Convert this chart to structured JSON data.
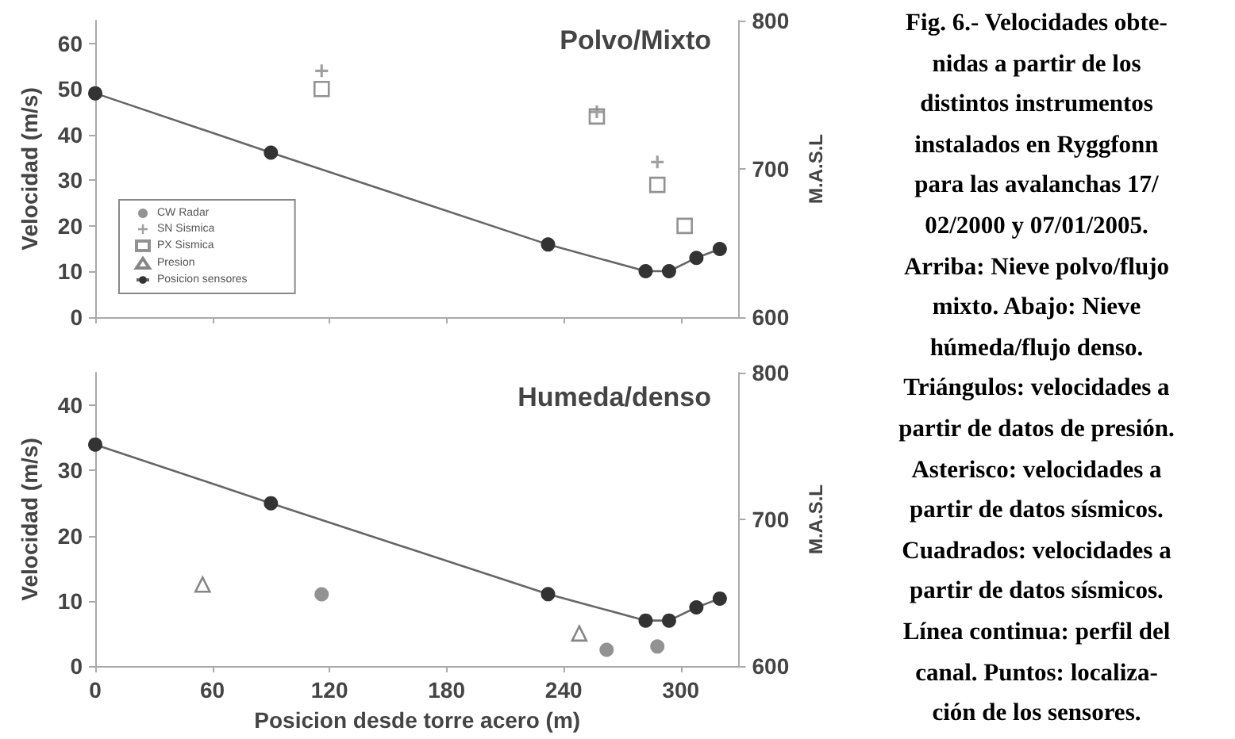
{
  "chart_data": [
    {
      "type": "scatter",
      "title": "Polvo/Mixto",
      "ylabel": "Velocidad (m/s)",
      "y2label": "M.A.S.L",
      "xlim": [
        0,
        330
      ],
      "xticks": [
        0,
        60,
        120,
        180,
        240,
        300
      ],
      "ylim": [
        0,
        65
      ],
      "yticks": [
        0,
        10,
        20,
        30,
        40,
        50,
        60
      ],
      "y2lim": [
        600,
        800
      ],
      "y2ticks": [
        600,
        700,
        800
      ],
      "tick_labels": "y",
      "grid": false,
      "legend": "bottom left",
      "annotations": [
        "Fig. 6.- Velocidades obte-\nnidas a partir de los\ndistintos instrumentos\ninstalados en Ryggfonn\npara las avalanchas 17/\n02/2000 y 07/01/2005.\nArriba: Nieve polvo/flujo\nmixto. Abajo: Nieve\nhúmeda/flujo denso.\nTriángulos: velocidades a\npartir de datos de presión.\nAsterisco: velocidades a\npartir de datos sísmicos.\nCuadrados: velocidades a\npartir de datos sísmicos.\nLínea continua: perfil del\ncanal. Puntos: localiza-\nción de los sensores."
      ],
      "series": [
        {
          "name": "CW Radar",
          "marker": "circle",
          "color": "#777777"
        },
        {
          "name": "SN Sismica",
          "marker": "cross",
          "color": "#888888",
          "x": [
            116,
            257,
            288
          ],
          "values": [
            54,
            45,
            34
          ]
        },
        {
          "name": "PX Sismica",
          "marker": "square",
          "color": "#777777",
          "x": [
            116,
            257,
            288,
            302
          ],
          "values": [
            50,
            44,
            29,
            20
          ]
        },
        {
          "name": "Presion",
          "marker": "triangle",
          "color": "#666666"
        },
        {
          "name": "Posicion sensores",
          "type": "line",
          "marker": "circle",
          "axis": "y2",
          "color": "#333333",
          "x": [
            0,
            90,
            232,
            282,
            294,
            308,
            320
          ],
          "values": [
            751,
            711,
            649,
            631,
            631,
            640,
            646
          ]
        }
      ]
    },
    {
      "type": "scatter",
      "title": "Humeda/denso",
      "xlabel": "Posicion desde torre acero (m)",
      "ylabel": "Velocidad (m/s)",
      "y2label": "M.A.S.L",
      "xlim": [
        0,
        330
      ],
      "xticks": [
        0,
        60,
        120,
        180,
        240,
        300
      ],
      "ylim": [
        0,
        45
      ],
      "yticks": [
        0,
        10,
        20,
        30,
        40
      ],
      "y2lim": [
        600,
        800
      ],
      "y2ticks": [
        600,
        700,
        800
      ],
      "grid": false,
      "legend": false,
      "series": [
        {
          "marker": "circle",
          "color": "#777777",
          "x": [
            116,
            262,
            288
          ],
          "values": [
            11,
            2.5,
            3
          ]
        },
        {
          "marker": "triangle",
          "color": "#666666",
          "x": [
            55,
            248
          ],
          "values": [
            12.5,
            5
          ]
        },
        {
          "type": "line",
          "marker": "circle",
          "axis": "y2",
          "color": "#333333",
          "x": [
            0,
            90,
            232,
            282,
            294,
            308,
            320
          ],
          "values": [
            751,
            711,
            649,
            631,
            631,
            640,
            646
          ]
        }
      ]
    }
  ]
}
